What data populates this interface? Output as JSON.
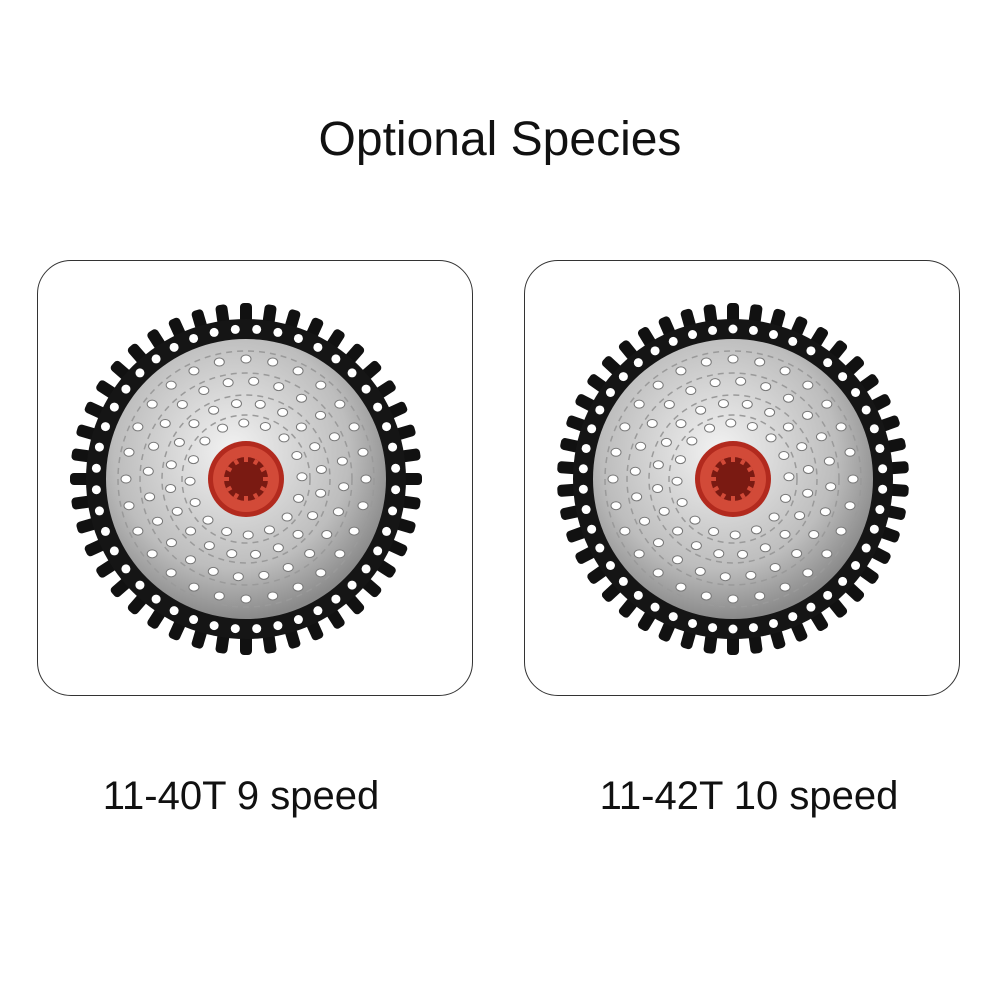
{
  "title": "Optional Species",
  "options": [
    {
      "label": "11-40T 9 speed"
    },
    {
      "label": "11-42T 10 speed"
    }
  ]
}
